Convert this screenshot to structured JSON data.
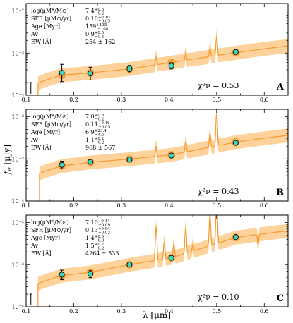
{
  "figure": {
    "ylabel": "f",
    "ylabel_sub": "ν",
    "ylabel_unit": " [μJy]",
    "xlabel": "λ [μm]"
  },
  "chart_data": [
    {
      "type": "scatter",
      "panel": "A",
      "stats": [
        {
          "label": "log(μM*/M⊙)",
          "value": "7.4",
          "sup": "+0.3",
          "sub": "−0.2"
        },
        {
          "label": "SFR [μM⊙/yr]",
          "value": "0.10",
          "sup": "+0.10",
          "sub": "−0.05"
        },
        {
          "label": "Age [Myr]",
          "value": "159",
          "sup": "+135",
          "sub": "−108"
        },
        {
          "label": "Av",
          "value": "0.9",
          "sup": "+0.5",
          "sub": "−0.4"
        },
        {
          "label": "EW [Å]",
          "value": "254 ± 162",
          "sup": "",
          "sub": ""
        }
      ],
      "chi2_label": "χ²ν = 0.53",
      "observed_points": [
        {
          "x": 0.175,
          "y": 0.00034,
          "yerr_low": 0.00013,
          "yerr_high": 0.0002
        },
        {
          "x": 0.235,
          "y": 0.00033,
          "yerr_low": 0.0001,
          "yerr_high": 0.00013
        },
        {
          "x": 0.317,
          "y": 0.00043,
          "yerr_low": 7e-05,
          "yerr_high": 8e-05
        },
        {
          "x": 0.405,
          "y": 0.0005,
          "yerr_low": 8e-05,
          "yerr_high": 9e-05
        },
        {
          "x": 0.54,
          "y": 0.00106,
          "yerr_low": 0.0001,
          "yerr_high": 0.0001
        }
      ],
      "model_points": [
        {
          "x": 0.175,
          "y": 0.0003
        },
        {
          "x": 0.235,
          "y": 0.00034
        },
        {
          "x": 0.317,
          "y": 0.00042
        },
        {
          "x": 0.405,
          "y": 0.0006
        },
        {
          "x": 0.54,
          "y": 0.00102
        }
      ],
      "upper_limit": {
        "x": 0.11,
        "y": 0.0002
      },
      "emission_lines": [
        {
          "x": 0.373,
          "peak": 0.0008
        },
        {
          "x": 0.435,
          "peak": 0.001
        },
        {
          "x": 0.486,
          "peak": 0.0013
        },
        {
          "x": 0.5,
          "peak": 0.0025
        },
        {
          "x": 0.656,
          "peak": 0.005
        }
      ],
      "continuum_start": 0.125,
      "ylim": [
        0.0001,
        0.015
      ],
      "xlim": [
        0.1,
        0.65
      ],
      "ytick_labels": [
        "10⁻⁴",
        "10⁻³",
        "10⁻²"
      ],
      "xtick_labels": [
        "0.1",
        "0.2",
        "0.3",
        "0.4",
        "0.5",
        "0.6"
      ]
    },
    {
      "type": "scatter",
      "panel": "B",
      "stats": [
        {
          "label": "log(μM*/M⊙)",
          "value": "7.0",
          "sup": "+0.6",
          "sub": "−0.2"
        },
        {
          "label": "SFR [μM⊙/yr]",
          "value": "0.11",
          "sup": "+0.16",
          "sub": "−0.05"
        },
        {
          "label": "Age [Myr]",
          "value": "6.9",
          "sup": "+23.4",
          "sub": "−4.6"
        },
        {
          "label": "Av",
          "value": "1.1",
          "sup": "+0.2",
          "sub": "−0.2"
        },
        {
          "label": "EW [Å]",
          "value": "968 ± 567",
          "sup": "",
          "sub": ""
        }
      ],
      "chi2_label": "χ²ν = 0.43",
      "observed_points": [
        {
          "x": 0.175,
          "y": 0.00072,
          "yerr_low": 0.00014,
          "yerr_high": 0.00016
        },
        {
          "x": 0.235,
          "y": 0.00085,
          "yerr_low": 9e-05,
          "yerr_high": 0.0001
        },
        {
          "x": 0.317,
          "y": 0.00096,
          "yerr_low": 6e-05,
          "yerr_high": 6e-05
        },
        {
          "x": 0.405,
          "y": 0.0012,
          "yerr_low": 0.00012,
          "yerr_high": 0.00012
        },
        {
          "x": 0.54,
          "y": 0.0024,
          "yerr_low": 0.00015,
          "yerr_high": 0.00015
        }
      ],
      "model_points": [
        {
          "x": 0.175,
          "y": 0.00068
        },
        {
          "x": 0.235,
          "y": 0.00083
        },
        {
          "x": 0.317,
          "y": 0.00099
        },
        {
          "x": 0.405,
          "y": 0.00125
        },
        {
          "x": 0.54,
          "y": 0.0025
        }
      ],
      "upper_limit": null,
      "emission_lines": [
        {
          "x": 0.373,
          "peak": 0.002
        },
        {
          "x": 0.435,
          "peak": 0.0025
        },
        {
          "x": 0.486,
          "peak": 0.004
        },
        {
          "x": 0.5,
          "peak": 0.012
        },
        {
          "x": 0.656,
          "peak": 0.03
        }
      ],
      "continuum_start": 0.128,
      "ylim": [
        0.0001,
        0.015
      ],
      "xlim": [
        0.1,
        0.65
      ],
      "ytick_labels": [
        "10⁻⁴",
        "10⁻³",
        "10⁻²"
      ],
      "xtick_labels": [
        "0.1",
        "0.2",
        "0.3",
        "0.4",
        "0.5",
        "0.6"
      ]
    },
    {
      "type": "scatter",
      "panel": "C",
      "stats": [
        {
          "label": "log(μM*/M⊙)",
          "value": "7.10",
          "sup": "+0.14",
          "sub": "−0.09"
        },
        {
          "label": "SFR [μM⊙/yr]",
          "value": "0.13",
          "sup": "+0.04",
          "sub": "−0.02"
        },
        {
          "label": "Age [Myr]",
          "value": "1.4",
          "sup": "+0.5",
          "sub": "−0.3"
        },
        {
          "label": "Av",
          "value": "1.5",
          "sup": "+0.2",
          "sub": "−0.2"
        },
        {
          "label": "EW [Å]",
          "value": "4264 ± 533",
          "sup": "",
          "sub": ""
        }
      ],
      "chi2_label": "χ²ν = 0.10",
      "observed_points": [
        {
          "x": 0.175,
          "y": 0.00058,
          "yerr_low": 0.00014,
          "yerr_high": 0.00016
        },
        {
          "x": 0.235,
          "y": 0.0006,
          "yerr_low": 0.00011,
          "yerr_high": 0.00012
        },
        {
          "x": 0.317,
          "y": 0.001,
          "yerr_low": 7e-05,
          "yerr_high": 7e-05
        },
        {
          "x": 0.405,
          "y": 0.00145,
          "yerr_low": 0.00014,
          "yerr_high": 0.00014
        },
        {
          "x": 0.54,
          "y": 0.0045,
          "yerr_low": 0.0003,
          "yerr_high": 0.0003
        }
      ],
      "model_points": [
        {
          "x": 0.175,
          "y": 0.00055
        },
        {
          "x": 0.235,
          "y": 0.00066
        },
        {
          "x": 0.317,
          "y": 0.001
        },
        {
          "x": 0.405,
          "y": 0.00145
        },
        {
          "x": 0.54,
          "y": 0.0044
        }
      ],
      "upper_limit": {
        "x": 0.11,
        "y": 0.0002
      },
      "emission_lines": [
        {
          "x": 0.373,
          "peak": 0.008
        },
        {
          "x": 0.39,
          "peak": 0.0035
        },
        {
          "x": 0.41,
          "peak": 0.003
        },
        {
          "x": 0.435,
          "peak": 0.008
        },
        {
          "x": 0.45,
          "peak": 0.003
        },
        {
          "x": 0.486,
          "peak": 0.015
        },
        {
          "x": 0.5,
          "peak": 0.03
        },
        {
          "x": 0.587,
          "peak": 0.003
        },
        {
          "x": 0.656,
          "peak": 0.05
        }
      ],
      "continuum_start": 0.125,
      "ylim": [
        0.0001,
        0.015
      ],
      "xlim": [
        0.1,
        0.65
      ],
      "ytick_labels": [
        "10⁻⁴",
        "10⁻³",
        "10⁻²"
      ],
      "xtick_labels": [
        "0.1",
        "0.2",
        "0.3",
        "0.4",
        "0.5",
        "0.6"
      ]
    }
  ],
  "colors": {
    "band": "#fdd29b",
    "line": "#f59a2e",
    "marker": "#3fd6c0",
    "model_marker": "#f7a13c",
    "axis": "#000000"
  },
  "icons": {
    "chi": "greek-chi-glyph"
  }
}
